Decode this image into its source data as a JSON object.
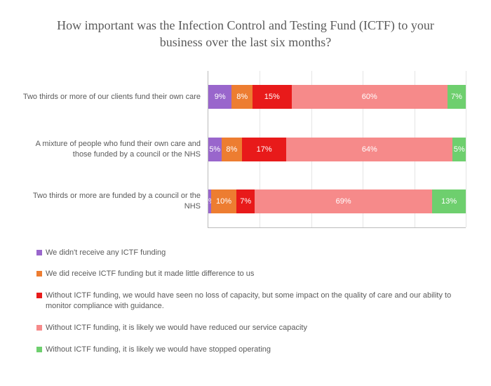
{
  "title": "How important was the Infection Control and Testing Fund (ICTF) to your business over the last six months?",
  "chart": {
    "type": "stacked-horizontal-bar",
    "xlim": [
      0,
      100
    ],
    "grid_step": 20,
    "grid_color": "#e5e5e5",
    "axis_color": "#bbbbbb",
    "background_color": "#ffffff",
    "label_fontsize": 11,
    "seg_fontsize": 11,
    "seg_text_color": "#ffffff",
    "categories": [
      "Two thirds or more of our clients fund their own care",
      "A mixture of people who fund their own care and those funded by a council or the NHS",
      "Two thirds or more are funded by a council or the NHS"
    ],
    "series": [
      {
        "label": "We didn't receive any ICTF funding",
        "color": "#9966cc"
      },
      {
        "label": "We did receive ICTF funding but it made little difference to us",
        "color": "#ed7d31"
      },
      {
        "label": "Without ICTF funding, we would have seen no loss of capacity, but some impact on the quality of care and our ability to monitor compliance with guidance.",
        "color": "#e81a1a"
      },
      {
        "label": "Without ICTF funding, it is likely we would have reduced our service capacity",
        "color": "#f68a8a"
      },
      {
        "label": "Without ICTF funding, it is likely we would have stopped operating",
        "color": "#6ecf6e"
      }
    ],
    "rows": [
      [
        9,
        8,
        15,
        60,
        7
      ],
      [
        5,
        8,
        17,
        64,
        5
      ],
      [
        1,
        10,
        7,
        69,
        13
      ]
    ]
  }
}
